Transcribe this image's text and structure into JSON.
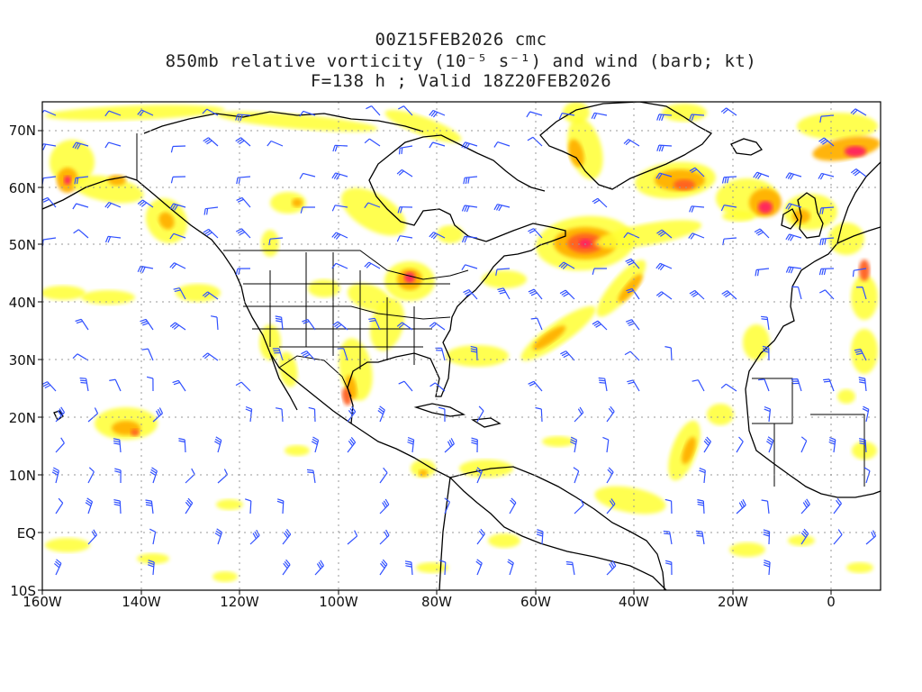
{
  "title": {
    "line1": "00Z15FEB2026 cmc",
    "line2": "850mb relative vorticity (10⁻⁵ s⁻¹) and wind (barb; kt)",
    "line3": "F=138 h ; Valid 18Z20FEB2026"
  },
  "axes": {
    "lat_labels": [
      "70N",
      "60N",
      "50N",
      "40N",
      "30N",
      "20N",
      "10N",
      "EQ",
      "10S"
    ],
    "lon_labels": [
      "160W",
      "140W",
      "120W",
      "100W",
      "80W",
      "60W",
      "40W",
      "20W",
      "0"
    ]
  },
  "colors": {
    "vorticity_low": "#ffff33",
    "vorticity_mid": "#ffb000",
    "vorticity_high": "#ff6020",
    "vorticity_max": "#ff2060",
    "wind_barb": "#3050ff",
    "coastline": "#000000",
    "gridline": "#999999"
  },
  "map": {
    "projection": "cylindrical",
    "lon_range": [
      "160W",
      "10E"
    ],
    "lat_range": [
      "10S",
      "75N"
    ]
  }
}
